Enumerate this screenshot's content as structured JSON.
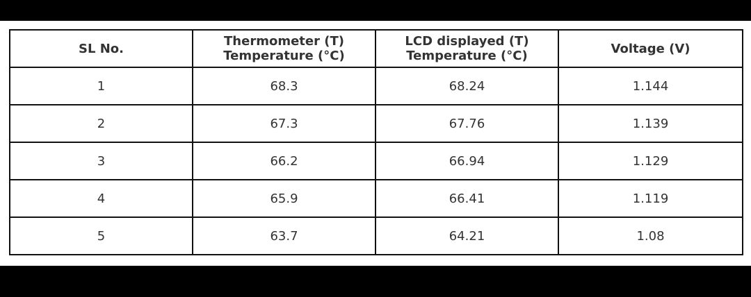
{
  "table": {
    "headers": [
      {
        "line1": "SL No.",
        "line2": ""
      },
      {
        "line1": "Thermometer (T)",
        "line2": "Temperature (°C)"
      },
      {
        "line1": "LCD displayed (T)",
        "line2": "Temperature (°C)"
      },
      {
        "line1": "Voltage (V)",
        "line2": ""
      }
    ],
    "rows": [
      [
        "1",
        "68.3",
        "68.24",
        "1.144"
      ],
      [
        "2",
        "67.3",
        "67.76",
        "1.139"
      ],
      [
        "3",
        "66.2",
        "66.94",
        "1.129"
      ],
      [
        "4",
        "65.9",
        "66.41",
        "1.119"
      ],
      [
        "5",
        "63.7",
        "64.21",
        "1.08"
      ]
    ]
  }
}
